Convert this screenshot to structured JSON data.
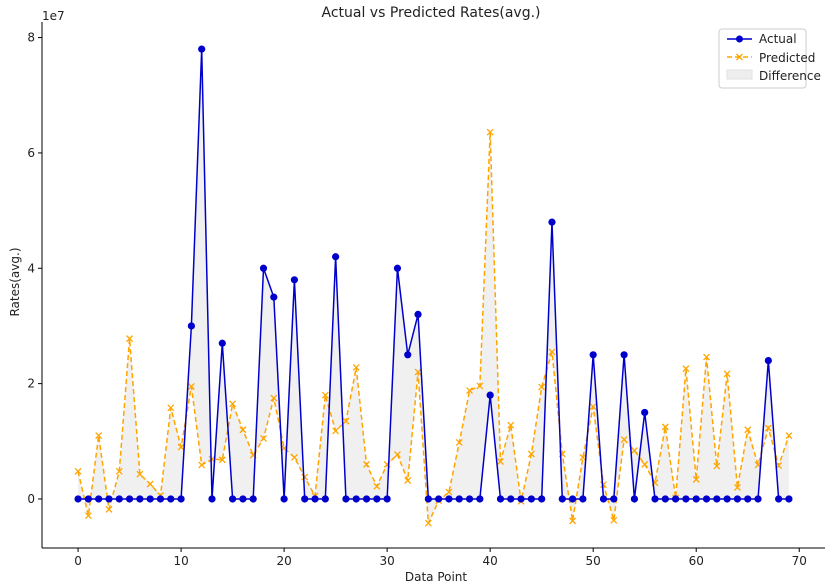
{
  "chart_data": {
    "type": "line",
    "title": "Actual vs Predicted Rates(avg.)",
    "xlabel": "Data Point",
    "ylabel": "Rates(avg.)",
    "y_scale_label": "1e7",
    "xlim": [
      -3.5,
      72.5
    ],
    "ylim": [
      -8500000.0,
      82700000.0
    ],
    "x_ticks": [
      0,
      10,
      20,
      30,
      40,
      50,
      60,
      70
    ],
    "y_ticks": [
      0,
      20000000,
      40000000,
      60000000,
      80000000
    ],
    "y_tick_labels": [
      "0",
      "2",
      "4",
      "6",
      "8"
    ],
    "grid": false,
    "legend_position": "top-right",
    "series": [
      {
        "name": "Actual",
        "color": "#0000cc",
        "style": "solid",
        "marker": "circle",
        "values": [
          0,
          0,
          0,
          0,
          0,
          0,
          0,
          0,
          0,
          0,
          0,
          30000000,
          78000000,
          0,
          27000000,
          0,
          0,
          0,
          40000000,
          35000000,
          0,
          38000000,
          0,
          0,
          0,
          42000000,
          0,
          0,
          0,
          0,
          0,
          40000000,
          25000000,
          32000000,
          0,
          0,
          0,
          0,
          0,
          0,
          18000000,
          0,
          0,
          0,
          0,
          0,
          48000000,
          0,
          0,
          0,
          25000000,
          0,
          0,
          25000000,
          0,
          15000000,
          0,
          0,
          0,
          0,
          0,
          0,
          0,
          0,
          0,
          0,
          0,
          24000000,
          0,
          0
        ]
      },
      {
        "name": "Predicted",
        "color": "#ffa500",
        "style": "dashed",
        "marker": "x",
        "values": [
          4800000,
          -2900000,
          11000000,
          -1800000,
          4800000,
          27800000,
          4300000,
          2600000,
          600000,
          15800000,
          9000000,
          19500000,
          5900000,
          6900000,
          6800000,
          16500000,
          12000000,
          7600000,
          10500000,
          17500000,
          8800000,
          7200000,
          3800000,
          500000,
          18000000,
          11800000,
          13500000,
          22800000,
          6000000,
          2200000,
          6000000,
          7700000,
          3200000,
          22000000,
          -4200000,
          -300000,
          1200000,
          9800000,
          18800000,
          19600000,
          63600000,
          6500000,
          12800000,
          -400000,
          7800000,
          19400000,
          25500000,
          7800000,
          -3800000,
          7200000,
          16000000,
          2500000,
          -3700000,
          10300000,
          8400000,
          6000000,
          2800000,
          12500000,
          200000,
          22600000,
          3400000,
          24600000,
          5700000,
          21700000,
          2000000,
          12000000,
          5900000,
          12300000,
          5800000,
          11000000
        ]
      }
    ],
    "legend": [
      {
        "label": "Actual"
      },
      {
        "label": "Predicted"
      },
      {
        "label": "Difference"
      }
    ]
  }
}
